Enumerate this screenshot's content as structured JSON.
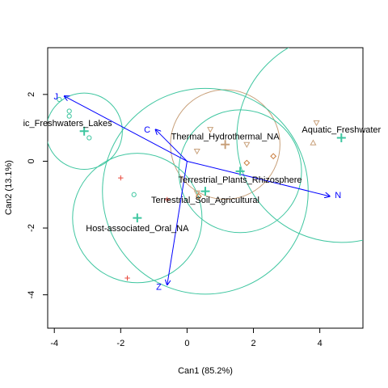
{
  "chart_data": {
    "type": "scatter",
    "xlabel": "Can1 (85.2%)",
    "ylabel": "Can2 (13.1%)",
    "xlim": [
      -4.2,
      5.3
    ],
    "ylim": [
      -5.0,
      3.4
    ],
    "x_ticks": [
      -4,
      -2,
      0,
      2,
      4
    ],
    "y_ticks": [
      -4,
      -2,
      0,
      2
    ],
    "grid": false,
    "colors": {
      "teal": "#3fc6a0",
      "tan": "#c8a07a",
      "red": "#e8483c",
      "vector": "#0000ff"
    },
    "groups": [
      {
        "label": "ic_Freshwaters_Lakes",
        "centroid": [
          -3.1,
          0.9
        ],
        "label_pos": [
          -3.6,
          1.15
        ],
        "radius": 1.15,
        "color": "#3fc6a0"
      },
      {
        "label": "Thermal_Hydrothermal_NA",
        "centroid": [
          1.15,
          0.5
        ],
        "label_pos": [
          1.15,
          0.75
        ],
        "radius": 1.65,
        "color": "#c8a07a"
      },
      {
        "label": "Aquatic_Freshwater",
        "centroid": [
          4.65,
          0.7
        ],
        "label_pos": [
          4.65,
          0.95
        ],
        "radius": 3.15,
        "color": "#3fc6a0"
      },
      {
        "label": "Terrestrial_Plants_Rhizosphere",
        "centroid": [
          1.6,
          -0.3
        ],
        "label_pos": [
          1.6,
          -0.55
        ],
        "radius": 1.85,
        "color": "#3fc6a0"
      },
      {
        "label": "Terrestrial_Soil_Agricultural",
        "centroid": [
          0.55,
          -0.9
        ],
        "label_pos": [
          0.55,
          -1.15
        ],
        "radius": 3.1,
        "color": "#3fc6a0"
      },
      {
        "label": "Host-associated_Oral_NA",
        "centroid": [
          -1.5,
          -1.7
        ],
        "label_pos": [
          -1.5,
          -2.0
        ],
        "radius": 1.95,
        "color": "#3fc6a0"
      }
    ],
    "points": [
      {
        "x": -3.85,
        "y": 1.85,
        "shape": "circle",
        "color": "#3fc6a0"
      },
      {
        "x": -3.55,
        "y": 1.5,
        "shape": "circle",
        "color": "#3fc6a0"
      },
      {
        "x": -3.55,
        "y": 1.35,
        "shape": "circle",
        "color": "#3fc6a0"
      },
      {
        "x": -2.95,
        "y": 0.7,
        "shape": "circle",
        "color": "#3fc6a0"
      },
      {
        "x": -1.6,
        "y": -1.0,
        "shape": "circle",
        "color": "#3fc6a0"
      },
      {
        "x": -2.0,
        "y": -0.5,
        "shape": "plus",
        "color": "#e8483c"
      },
      {
        "x": -1.8,
        "y": -3.5,
        "shape": "plus",
        "color": "#e8483c"
      },
      {
        "x": -0.6,
        "y": -1.15,
        "shape": "plus",
        "color": "#e8483c"
      },
      {
        "x": 0.7,
        "y": 0.95,
        "shape": "tri-down",
        "color": "#c8a07a"
      },
      {
        "x": 0.3,
        "y": 0.3,
        "shape": "tri-down",
        "color": "#c8a07a"
      },
      {
        "x": 1.8,
        "y": 0.5,
        "shape": "tri-down",
        "color": "#c8a07a"
      },
      {
        "x": 3.9,
        "y": 1.15,
        "shape": "tri-down",
        "color": "#c8a07a"
      },
      {
        "x": 0.3,
        "y": -0.95,
        "shape": "tri-down",
        "color": "#c8a07a"
      },
      {
        "x": 3.8,
        "y": 0.55,
        "shape": "tri-up",
        "color": "#c8a07a"
      },
      {
        "x": 1.8,
        "y": -0.05,
        "shape": "diamond",
        "color": "#c87a3a"
      },
      {
        "x": 2.6,
        "y": 0.15,
        "shape": "diamond",
        "color": "#c87a3a"
      },
      {
        "x": 0.35,
        "y": -1.05,
        "shape": "diamond",
        "color": "#c87a3a"
      }
    ],
    "vectors": [
      {
        "label": "J",
        "x": -3.7,
        "y": 1.95,
        "label_pos": [
          -3.95,
          1.95
        ]
      },
      {
        "label": "C",
        "x": -0.95,
        "y": 0.95,
        "label_pos": [
          -1.2,
          0.95
        ]
      },
      {
        "label": "N",
        "x": 4.3,
        "y": -1.05,
        "label_pos": [
          4.55,
          -1.0
        ]
      },
      {
        "label": "Z",
        "x": -0.6,
        "y": -3.7,
        "label_pos": [
          -0.85,
          -3.75
        ]
      }
    ]
  }
}
